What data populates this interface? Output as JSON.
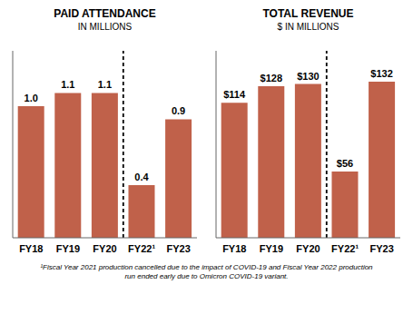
{
  "chart_data": [
    {
      "type": "bar",
      "title": "PAID ATTENDANCE",
      "subtitle": "IN MILLIONS",
      "categories": [
        "FY18",
        "FY19",
        "FY20",
        "FY22¹",
        "FY23"
      ],
      "values": [
        1.0,
        1.1,
        1.1,
        0.4,
        0.9
      ],
      "value_labels": [
        "1.0",
        "1.1",
        "1.1",
        "0.4",
        "0.9"
      ],
      "color": "#c0614a",
      "ylim": [
        0,
        1.42
      ],
      "data_labels": true,
      "tick_labels": "x",
      "grid": false
    },
    {
      "type": "bar",
      "title": "TOTAL REVENUE",
      "subtitle": "$ IN MILLIONS",
      "categories": [
        "FY18",
        "FY19",
        "FY20",
        "FY22¹",
        "FY23"
      ],
      "values": [
        114,
        128,
        130,
        56,
        132
      ],
      "value_labels": [
        "$114",
        "$128",
        "$130",
        "$56",
        "$132"
      ],
      "color": "#c0614a",
      "ylim": [
        0,
        158
      ],
      "data_labels": true,
      "tick_labels": "x",
      "grid": false
    }
  ],
  "footnote": "¹Fiscal Year 2021 production cancelled due to the impact of COVID-19 and Fiscal Year 2022 production\nrun ended early due to Omicron COVID-19 variant."
}
